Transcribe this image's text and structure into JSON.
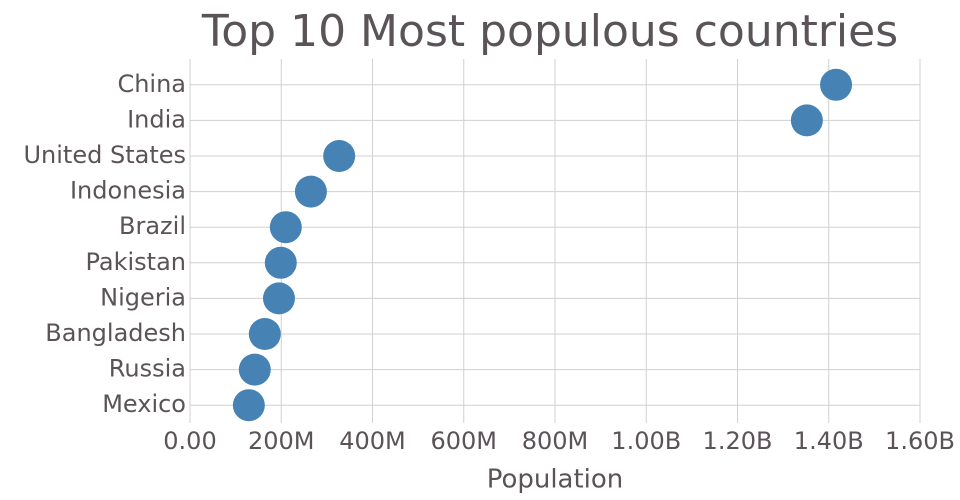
{
  "chart_data": {
    "type": "dot",
    "title": "Top 10 Most populous countries",
    "x_label": "Population",
    "categories": [
      "China",
      "India",
      "United States",
      "Indonesia",
      "Brazil",
      "Pakistan",
      "Nigeria",
      "Bangladesh",
      "Russia",
      "Mexico"
    ],
    "values": [
      1416000000,
      1352000000,
      327000000,
      265000000,
      210000000,
      199000000,
      195000000,
      164000000,
      142000000,
      129000000
    ],
    "color": "#4682b4",
    "xlim": [
      0,
      1600000000
    ],
    "xticks": [
      {
        "value": 0,
        "label": "0.00"
      },
      {
        "value": 200000000,
        "label": "200M"
      },
      {
        "value": 400000000,
        "label": "400M"
      },
      {
        "value": 600000000,
        "label": "600M"
      },
      {
        "value": 800000000,
        "label": "800M"
      },
      {
        "value": 1000000000,
        "label": "1.00B"
      },
      {
        "value": 1200000000,
        "label": "1.20B"
      },
      {
        "value": 1400000000,
        "label": "1.40B"
      },
      {
        "value": 1600000000,
        "label": "1.60B"
      }
    ],
    "grid": true
  }
}
